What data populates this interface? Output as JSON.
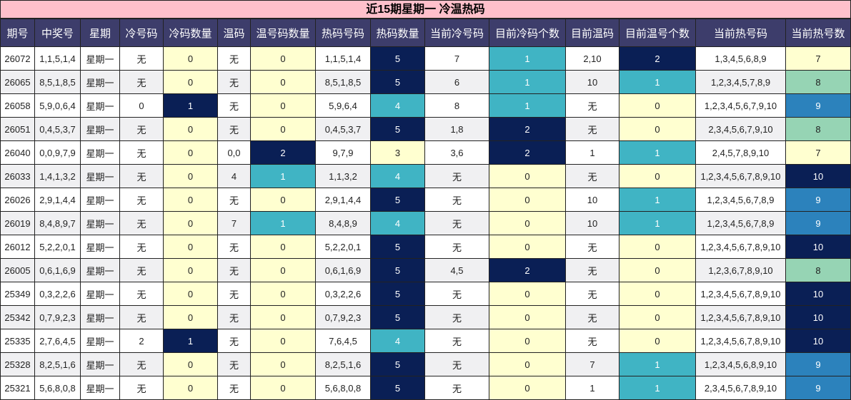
{
  "title": "近15期星期一 冷温热码",
  "headers": [
    "期号",
    "中奖号",
    "星期",
    "冷号码",
    "冷码数量",
    "温码",
    "温号码数量",
    "热码号码",
    "热码数量",
    "当前冷号码",
    "目前冷码个数",
    "目前温码",
    "目前温号个数",
    "当前热号码",
    "当前热号数"
  ],
  "rows": [
    [
      "26072",
      "1,1,5,1,4",
      "星期一",
      "无",
      "0",
      "无",
      "0",
      "1,1,5,1,4",
      "5",
      "7",
      "1",
      "2,10",
      "2",
      "1,3,4,5,6,8,9",
      "7"
    ],
    [
      "26065",
      "8,5,1,8,5",
      "星期一",
      "无",
      "0",
      "无",
      "0",
      "8,5,1,8,5",
      "5",
      "6",
      "1",
      "10",
      "1",
      "1,2,3,4,5,7,8,9",
      "8"
    ],
    [
      "26058",
      "5,9,0,6,4",
      "星期一",
      "0",
      "1",
      "无",
      "0",
      "5,9,6,4",
      "4",
      "8",
      "1",
      "无",
      "0",
      "1,2,3,4,5,6,7,9,10",
      "9"
    ],
    [
      "26051",
      "0,4,5,3,7",
      "星期一",
      "无",
      "0",
      "无",
      "0",
      "0,4,5,3,7",
      "5",
      "1,8",
      "2",
      "无",
      "0",
      "2,3,4,5,6,7,9,10",
      "8"
    ],
    [
      "26040",
      "0,0,9,7,9",
      "星期一",
      "无",
      "0",
      "0,0",
      "2",
      "9,7,9",
      "3",
      "3,6",
      "2",
      "1",
      "1",
      "2,4,5,7,8,9,10",
      "7"
    ],
    [
      "26033",
      "1,4,1,3,2",
      "星期一",
      "无",
      "0",
      "4",
      "1",
      "1,1,3,2",
      "4",
      "无",
      "0",
      "无",
      "0",
      "1,2,3,4,5,6,7,8,9,10",
      "10"
    ],
    [
      "26026",
      "2,9,1,4,4",
      "星期一",
      "无",
      "0",
      "无",
      "0",
      "2,9,1,4,4",
      "5",
      "无",
      "0",
      "10",
      "1",
      "1,2,3,4,5,6,7,8,9",
      "9"
    ],
    [
      "26019",
      "8,4,8,9,7",
      "星期一",
      "无",
      "0",
      "7",
      "1",
      "8,4,8,9",
      "4",
      "无",
      "0",
      "10",
      "1",
      "1,2,3,4,5,6,7,8,9",
      "9"
    ],
    [
      "26012",
      "5,2,2,0,1",
      "星期一",
      "无",
      "0",
      "无",
      "0",
      "5,2,2,0,1",
      "5",
      "无",
      "0",
      "无",
      "0",
      "1,2,3,4,5,6,7,8,9,10",
      "10"
    ],
    [
      "26005",
      "0,6,1,6,9",
      "星期一",
      "无",
      "0",
      "无",
      "0",
      "0,6,1,6,9",
      "5",
      "4,5",
      "2",
      "无",
      "0",
      "1,2,3,6,7,8,9,10",
      "8"
    ],
    [
      "25349",
      "0,3,2,2,6",
      "星期一",
      "无",
      "0",
      "无",
      "0",
      "0,3,2,2,6",
      "5",
      "无",
      "0",
      "无",
      "0",
      "1,2,3,4,5,6,7,8,9,10",
      "10"
    ],
    [
      "25342",
      "0,7,9,2,3",
      "星期一",
      "无",
      "0",
      "无",
      "0",
      "0,7,9,2,3",
      "5",
      "无",
      "0",
      "无",
      "0",
      "1,2,3,4,5,6,7,8,9,10",
      "10"
    ],
    [
      "25335",
      "2,7,6,4,5",
      "星期一",
      "2",
      "1",
      "无",
      "0",
      "7,6,4,5",
      "4",
      "无",
      "0",
      "无",
      "0",
      "1,2,3,4,5,6,7,8,9,10",
      "10"
    ],
    [
      "25328",
      "8,2,5,1,6",
      "星期一",
      "无",
      "0",
      "无",
      "0",
      "8,2,5,1,6",
      "5",
      "无",
      "0",
      "7",
      "1",
      "1,2,3,4,5,6,8,9,10",
      "9"
    ],
    [
      "25321",
      "5,6,8,0,8",
      "星期一",
      "无",
      "0",
      "无",
      "0",
      "5,6,8,0,8",
      "5",
      "无",
      "0",
      "1",
      "1",
      "2,3,4,5,6,7,8,9,10",
      "9"
    ]
  ],
  "colors": {
    "title_bg": "#ffc0cb",
    "header_bg": "#3d3d6b",
    "dark_navy": "#0a1f55",
    "teal": "#40b4c4",
    "mint": "#96d4b4",
    "blue": "#2c82bc",
    "light_yellow": "#ffffd0"
  }
}
